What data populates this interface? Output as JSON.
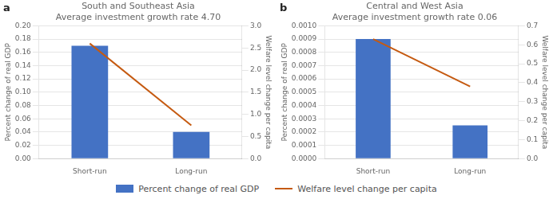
{
  "chart_data": [
    {
      "type": "bar",
      "title": "South and Southeast Asia",
      "subtitle": "Average investment growth rate 4.70",
      "annotation": "a",
      "categories": [
        "Short-run",
        "Long-run"
      ],
      "series": [
        {
          "name": "Percent change of real GDP",
          "type": "bar",
          "color": "#4472C4",
          "values": [
            0.17,
            0.04
          ]
        },
        {
          "name": "Welfare level change per capita",
          "type": "line",
          "axis": "y2",
          "color": "#C55A11",
          "values": [
            2.6,
            0.75
          ]
        }
      ],
      "ylabel": "Percent change of real GDP",
      "y2label": "Welfare level change per capita",
      "ylim": [
        0,
        0.2
      ],
      "yticks": [
        {
          "value": 0,
          "label": "0.00"
        },
        0.02,
        0.04,
        0.06,
        0.08,
        {
          "value": 0.1,
          "label": "0.10"
        },
        0.12,
        0.14,
        0.16,
        0.18,
        {
          "value": 0.2,
          "label": "0.20"
        }
      ],
      "y2lim": [
        0,
        3
      ],
      "y2ticks": [
        {
          "value": 0,
          "label": "0.0"
        },
        0.5,
        {
          "value": 1,
          "label": "1.0"
        },
        1.5,
        {
          "value": 2,
          "label": "2.0"
        },
        2.5,
        {
          "value": 3,
          "label": "3.0"
        }
      ],
      "grid": true,
      "legend": "bottom"
    },
    {
      "type": "bar",
      "title": "Central and West Asia",
      "subtitle": "Average investment growth rate 0.06",
      "annotation": "b",
      "categories": [
        "Short-run",
        "Long-run"
      ],
      "series": [
        {
          "name": "Percent change of real GDP",
          "type": "bar",
          "color": "#4472C4",
          "values": [
            0.0009,
            0.00025
          ]
        },
        {
          "name": "Welfare level change per capita",
          "type": "line",
          "axis": "y2",
          "color": "#C55A11",
          "values": [
            0.63,
            0.38
          ]
        }
      ],
      "ylabel": "Percent change of real GDP",
      "y2label": "Welfare level change per capita",
      "ylim": [
        0,
        0.001
      ],
      "yticks": [
        {
          "value": 0,
          "label": "0.0000"
        },
        0.0001,
        0.0002,
        0.0003,
        0.0004,
        0.0005,
        0.0006,
        0.0007,
        0.0008,
        0.0009,
        {
          "value": 0.001,
          "label": "0.0010"
        }
      ],
      "y2lim": [
        0,
        0.7
      ],
      "y2ticks": [
        {
          "value": 0,
          "label": "0.0"
        },
        0.1,
        0.2,
        0.3,
        0.4,
        0.5,
        0.6,
        0.7
      ],
      "grid": true,
      "legend": "bottom"
    }
  ]
}
